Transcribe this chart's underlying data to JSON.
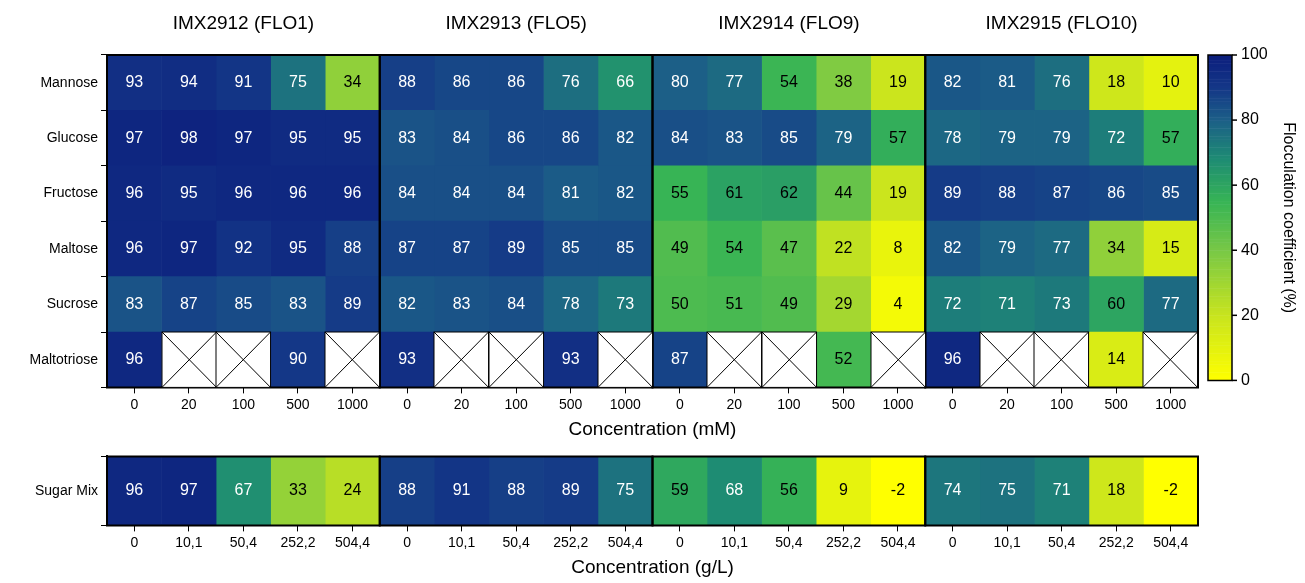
{
  "chart_data": [
    {
      "type": "heatmap",
      "xlabel": "Concentration (mM)",
      "clabel": "Flocculation coefficient (%)",
      "annotations": [
        "IMX2912 (FLO1)",
        "IMX2913 (FLO5)",
        "IMX2914 (FLO9)",
        "IMX2915 (FLO10)"
      ],
      "categories": [
        "0",
        "20",
        "100",
        "500",
        "1000",
        "0",
        "20",
        "100",
        "500",
        "1000",
        "0",
        "20",
        "100",
        "500",
        "1000",
        "0",
        "20",
        "100",
        "500",
        "1000"
      ],
      "y_categories": [
        "Mannose",
        "Glucose",
        "Fructose",
        "Maltose",
        "Sucrose",
        "Maltotriose"
      ],
      "cells": [
        [
          93,
          94,
          91,
          75,
          34,
          88,
          86,
          86,
          76,
          66,
          80,
          77,
          54,
          38,
          19,
          82,
          81,
          76,
          18,
          10
        ],
        [
          97,
          98,
          97,
          95,
          95,
          83,
          84,
          86,
          86,
          82,
          84,
          83,
          85,
          79,
          57,
          78,
          79,
          79,
          72,
          57
        ],
        [
          96,
          95,
          96,
          96,
          96,
          84,
          84,
          84,
          81,
          82,
          55,
          61,
          62,
          44,
          19,
          89,
          88,
          87,
          86,
          85
        ],
        [
          96,
          97,
          92,
          95,
          88,
          87,
          87,
          89,
          85,
          85,
          49,
          54,
          47,
          22,
          8,
          82,
          79,
          77,
          34,
          15
        ],
        [
          83,
          87,
          85,
          83,
          89,
          82,
          83,
          84,
          78,
          73,
          50,
          51,
          49,
          29,
          4,
          72,
          71,
          73,
          60,
          77
        ],
        [
          96,
          null,
          null,
          90,
          null,
          93,
          null,
          null,
          93,
          null,
          87,
          null,
          null,
          52,
          null,
          96,
          null,
          null,
          14,
          null
        ]
      ],
      "data_labels": true,
      "clim": [
        0,
        100
      ],
      "cticks": [
        0,
        20,
        40,
        60,
        80,
        100
      ]
    },
    {
      "type": "heatmap",
      "xlabel": "Concentration (g/L)",
      "categories": [
        "0",
        "10,1",
        "50,4",
        "252,2",
        "504,4",
        "0",
        "10,1",
        "50,4",
        "252,2",
        "504,4",
        "0",
        "10,1",
        "50,4",
        "252,2",
        "504,4",
        "0",
        "10,1",
        "50,4",
        "252,2",
        "504,4"
      ],
      "y_categories": [
        "Sugar Mix"
      ],
      "cells": [
        [
          96,
          97,
          67,
          33,
          24,
          88,
          91,
          88,
          89,
          75,
          59,
          68,
          56,
          9,
          -2,
          74,
          75,
          71,
          18,
          -2
        ]
      ],
      "data_labels": true
    }
  ]
}
